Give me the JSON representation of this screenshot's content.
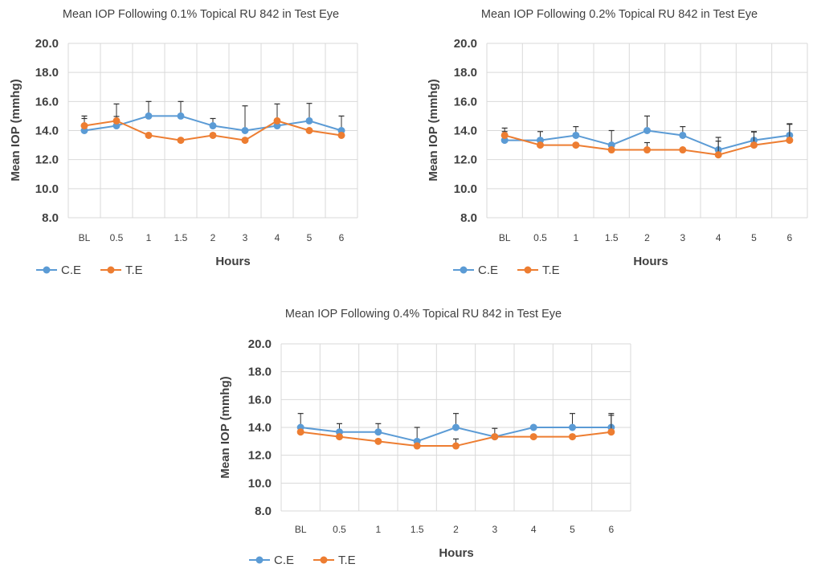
{
  "colors": {
    "ce": "#5b9bd5",
    "te": "#ed7d31",
    "grid": "#d9d9d9",
    "text": "#404040",
    "errorbar": "#2f2f2f"
  },
  "chart_data": [
    {
      "type": "line",
      "title": "Mean IOP Following 0.1% Topical RU 842 in Test Eye",
      "xlabel": "Hours",
      "ylabel": "Mean IOP (mmhg)",
      "ylim": [
        8,
        20
      ],
      "yticks": [
        "8.0",
        "10.0",
        "12.0",
        "14.0",
        "16.0",
        "18.0",
        "20.0"
      ],
      "categories": [
        "BL",
        "0.5",
        "1",
        "1.5",
        "2",
        "3",
        "4",
        "5",
        "6"
      ],
      "grid": true,
      "legend": "bottom-left",
      "series": [
        {
          "name": "C.E",
          "values": [
            14.0,
            14.33,
            15.0,
            15.0,
            14.33,
            14.0,
            14.33,
            14.67,
            14.0
          ],
          "error_plus": [
            1.0,
            1.5,
            1.0,
            1.0,
            0.5,
            1.7,
            1.5,
            1.2,
            1.0
          ]
        },
        {
          "name": "T.E",
          "values": [
            14.33,
            14.67,
            13.67,
            13.33,
            13.67,
            13.33,
            14.67,
            14.0,
            13.67
          ],
          "error_plus": [
            0.5,
            0.3,
            0.0,
            0.0,
            0.0,
            0.0,
            0.0,
            0.0,
            0.0
          ]
        }
      ]
    },
    {
      "type": "line",
      "title": "Mean IOP Following 0.2% Topical RU 842 in Test Eye",
      "xlabel": "Hours",
      "ylabel": "Mean IOP (mmhg)",
      "ylim": [
        8,
        20
      ],
      "yticks": [
        "8.0",
        "10.0",
        "12.0",
        "14.0",
        "16.0",
        "18.0",
        "20.0"
      ],
      "categories": [
        "BL",
        "0.5",
        "1",
        "1.5",
        "2",
        "3",
        "4",
        "5",
        "6"
      ],
      "grid": true,
      "legend": "bottom-left",
      "series": [
        {
          "name": "C.E",
          "values": [
            13.33,
            13.33,
            13.67,
            13.0,
            14.0,
            13.67,
            12.67,
            13.33,
            13.67
          ],
          "error_plus": [
            0.6,
            0.6,
            0.6,
            1.0,
            1.0,
            0.6,
            0.6,
            0.6,
            0.8
          ]
        },
        {
          "name": "T.E",
          "values": [
            13.67,
            13.0,
            13.0,
            12.67,
            12.67,
            12.67,
            12.33,
            13.0,
            13.33
          ],
          "error_plus": [
            0.5,
            0.0,
            0.0,
            0.0,
            0.5,
            0.0,
            1.2,
            0.9,
            1.1
          ]
        }
      ]
    },
    {
      "type": "line",
      "title": "Mean IOP Following 0.4% Topical RU 842 in Test Eye",
      "xlabel": "Hours",
      "ylabel": "Mean IOP (mmhg)",
      "ylim": [
        8,
        20
      ],
      "yticks": [
        "8.0",
        "10.0",
        "12.0",
        "14.0",
        "16.0",
        "18.0",
        "20.0"
      ],
      "categories": [
        "BL",
        "0.5",
        "1",
        "1.5",
        "2",
        "3",
        "4",
        "5",
        "6"
      ],
      "grid": true,
      "legend": "bottom-left",
      "series": [
        {
          "name": "C.E",
          "values": [
            14.0,
            13.67,
            13.67,
            13.0,
            14.0,
            13.33,
            14.0,
            14.0,
            14.0
          ],
          "error_plus": [
            1.0,
            0.6,
            0.6,
            1.0,
            1.0,
            0.6,
            0.0,
            1.0,
            1.0
          ]
        },
        {
          "name": "T.E",
          "values": [
            13.67,
            13.33,
            13.0,
            12.67,
            12.67,
            13.33,
            13.33,
            13.33,
            13.67
          ],
          "error_plus": [
            0.0,
            0.0,
            0.0,
            0.0,
            0.5,
            0.0,
            0.0,
            0.0,
            1.2
          ]
        }
      ]
    }
  ]
}
